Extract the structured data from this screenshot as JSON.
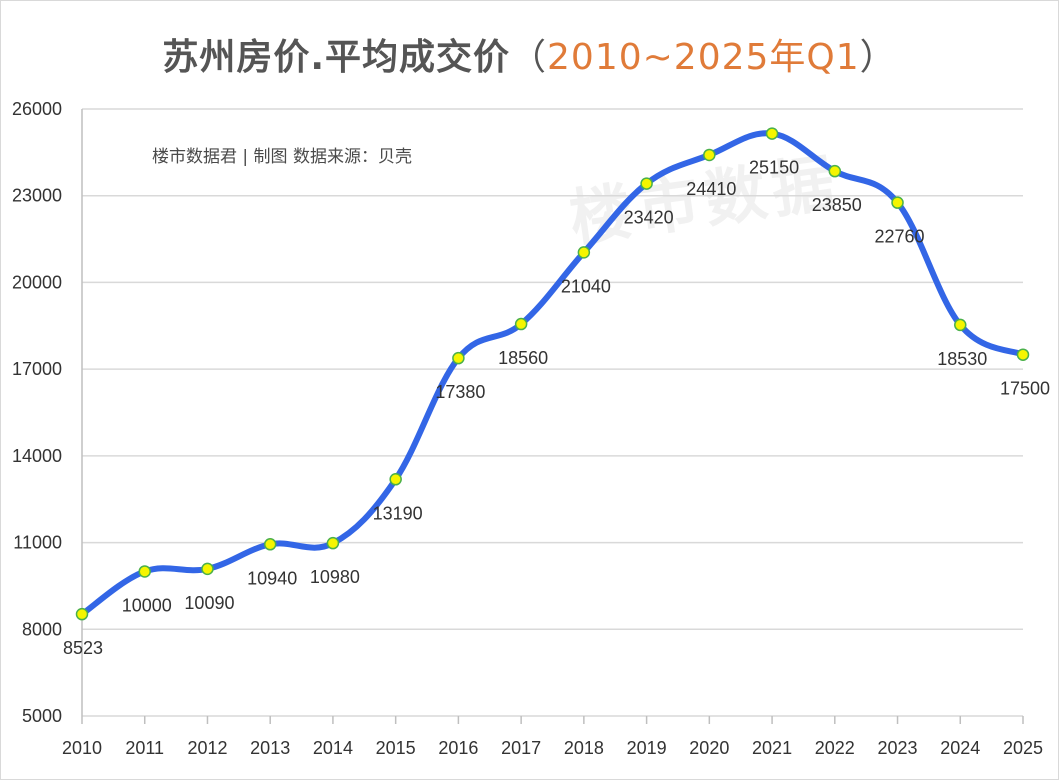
{
  "title": {
    "main": "苏州房价.平均成交价",
    "open_paren": "（",
    "range": "2010~2025年Q1",
    "close_paren": "）"
  },
  "credit": "楼市数据君 | 制图  数据来源：贝壳",
  "watermark": "楼市数据",
  "colors": {
    "line": "#3366e6",
    "marker_fill": "#f5f500",
    "marker_stroke": "#4ab04a",
    "grid": "#d9d9d9",
    "range_text": "#e07b39"
  },
  "chart_data": {
    "type": "line",
    "title": "苏州房价.平均成交价（2010~2025年Q1）",
    "xlabel": "",
    "ylabel": "",
    "categories": [
      "2010",
      "2011",
      "2012",
      "2013",
      "2014",
      "2015",
      "2016",
      "2017",
      "2018",
      "2019",
      "2020",
      "2021",
      "2022",
      "2023",
      "2024",
      "2025"
    ],
    "series": [
      {
        "name": "平均成交价",
        "values": [
          8523,
          10000,
          10090,
          10940,
          10980,
          13190,
          17380,
          18560,
          21040,
          23420,
          24410,
          25150,
          23850,
          22760,
          18530,
          17500
        ],
        "labels": [
          "8523",
          "10000",
          "10090",
          "10940",
          "10980",
          "13190",
          "17380",
          "18560",
          "21040",
          "23420",
          "24410",
          "25150",
          "23850",
          "22760",
          "18530",
          "17500"
        ]
      }
    ],
    "ylim": [
      5000,
      26000
    ],
    "yticks": [
      "5000",
      "8000",
      "11000",
      "14000",
      "17000",
      "20000",
      "23000",
      "26000"
    ],
    "grid": true,
    "smooth": true
  }
}
